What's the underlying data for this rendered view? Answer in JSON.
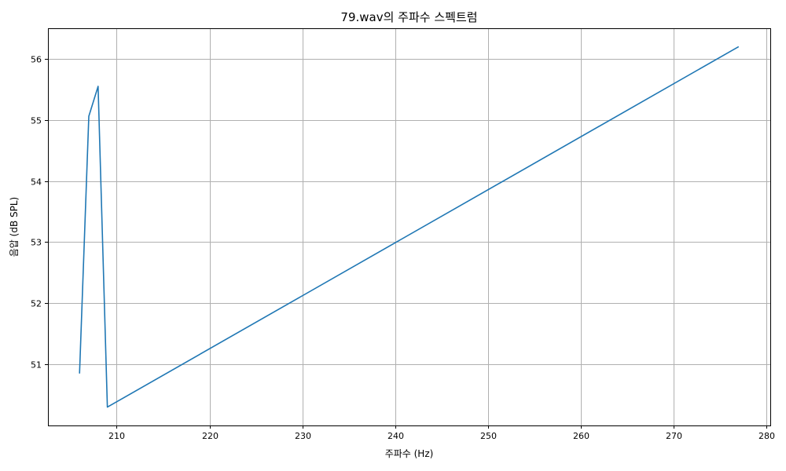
{
  "chart_data": {
    "type": "line",
    "title": "79.wav의 주파수 스펙트럼",
    "xlabel": "주파수 (Hz)",
    "ylabel": "음압 (dB SPL)",
    "xlim": [
      202.6,
      280.4
    ],
    "ylim": [
      50.0,
      56.5
    ],
    "xticks": [
      210,
      220,
      230,
      240,
      250,
      260,
      270,
      280
    ],
    "yticks": [
      51,
      52,
      53,
      54,
      55,
      56
    ],
    "grid": true,
    "series": [
      {
        "color": "#1f77b4",
        "x": [
          206,
          207,
          208,
          209,
          277
        ],
        "y": [
          50.85,
          55.06,
          55.55,
          50.3,
          56.2
        ]
      }
    ]
  }
}
